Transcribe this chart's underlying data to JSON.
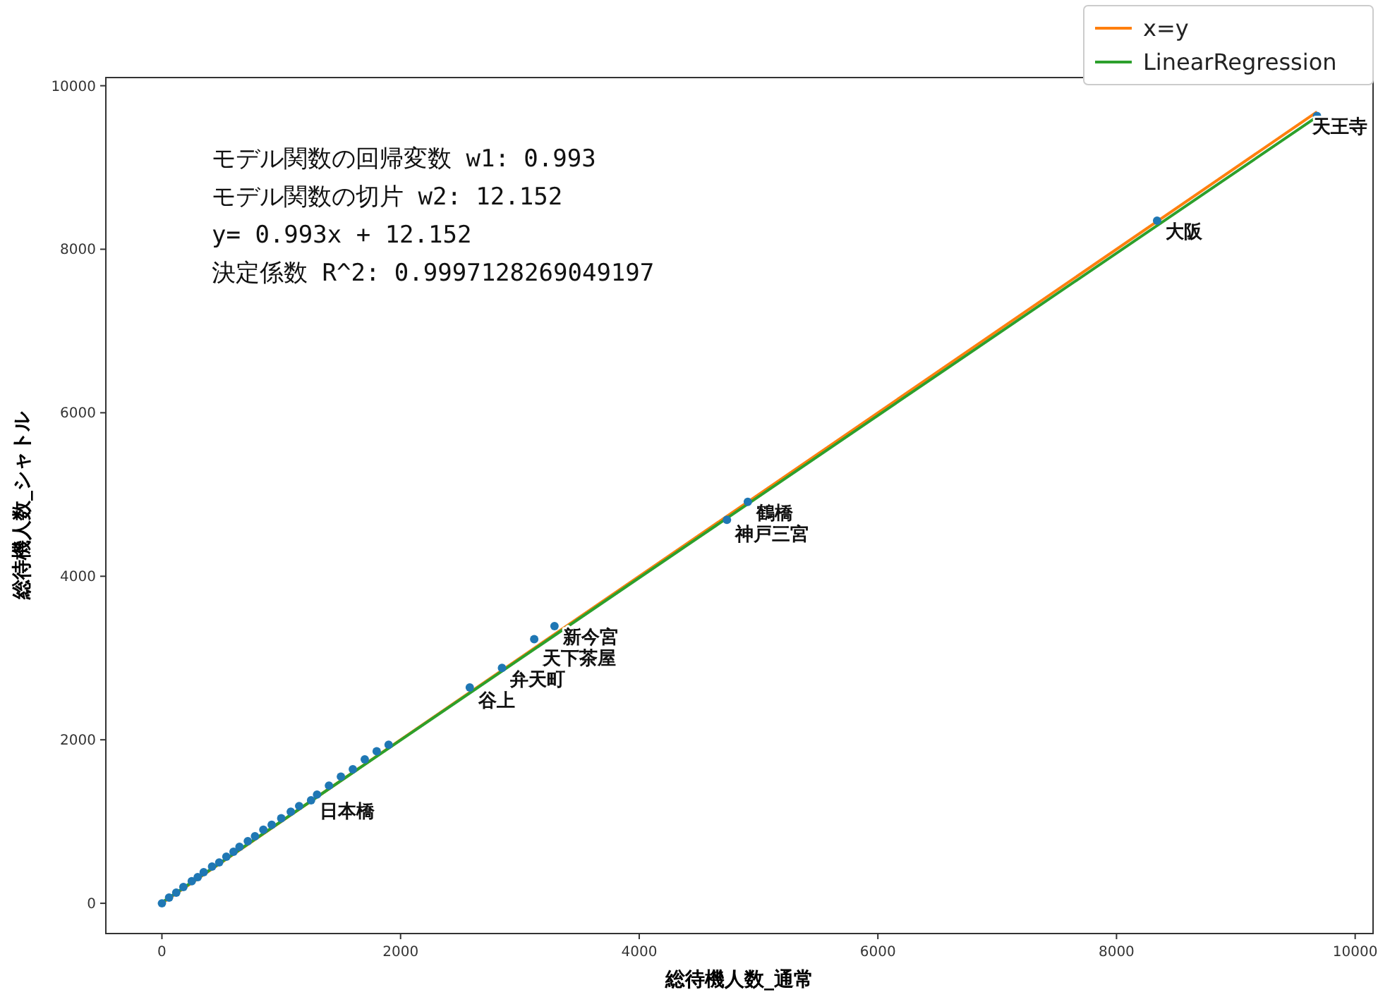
{
  "chart_data": {
    "type": "scatter",
    "xlabel": "総待機人数_通常",
    "ylabel": "総待機人数_シャトル",
    "xlim": [
      -470,
      10150
    ],
    "ylim": [
      -370,
      10100
    ],
    "xticks": [
      0,
      2000,
      4000,
      6000,
      8000,
      10000
    ],
    "yticks": [
      0,
      2000,
      4000,
      6000,
      8000,
      10000
    ],
    "grid": false,
    "legend": "top right",
    "annotations": [
      "モデル関数の回帰変数 w1: 0.993",
      "モデル関数の切片 w2: 12.152",
      "y= 0.993x + 12.152",
      "決定係数 R^2:   0.9997128269049197",
      {
        "text": "天王寺",
        "x": 9680,
        "y": 9630
      },
      {
        "text": "大阪",
        "x": 8340,
        "y": 8350
      },
      {
        "text": "鶴橋",
        "x": 4910,
        "y": 4910
      },
      {
        "text": "神戸三宮",
        "x": 4735,
        "y": 4690
      },
      {
        "text": "新今宮",
        "x": 3290,
        "y": 3390
      },
      {
        "text": "天下茶屋",
        "x": 3120,
        "y": 3230
      },
      {
        "text": "弁天町",
        "x": 2850,
        "y": 2880
      },
      {
        "text": "谷上",
        "x": 2580,
        "y": 2640
      },
      {
        "text": "日本橋",
        "x": 1250,
        "y": 1260
      }
    ],
    "series": [
      {
        "marker": "circle",
        "color": "#1f77b4",
        "x": [
          0,
          60,
          120,
          180,
          250,
          300,
          350,
          420,
          480,
          540,
          600,
          650,
          720,
          780,
          850,
          920,
          1000,
          1080,
          1150,
          1250,
          1300,
          1400,
          1500,
          1600,
          1700,
          1800,
          1900,
          2580,
          2850,
          3120,
          3290,
          4735,
          4910,
          8340,
          9680
        ],
        "values": [
          0,
          70,
          130,
          200,
          270,
          320,
          380,
          450,
          500,
          570,
          630,
          690,
          760,
          820,
          900,
          960,
          1040,
          1120,
          1190,
          1260,
          1330,
          1440,
          1550,
          1640,
          1760,
          1860,
          1940,
          2640,
          2880,
          3230,
          3390,
          4690,
          4910,
          8350,
          9630
        ]
      },
      {
        "type": "line",
        "name": "x=y",
        "color": "#ff7f0e",
        "x": [
          0,
          9680
        ],
        "values": [
          0,
          9680
        ]
      },
      {
        "type": "line",
        "name": "LinearRegression",
        "color": "#2ca02c",
        "x": [
          0,
          9680
        ],
        "values": [
          10,
          9620
        ]
      }
    ]
  }
}
